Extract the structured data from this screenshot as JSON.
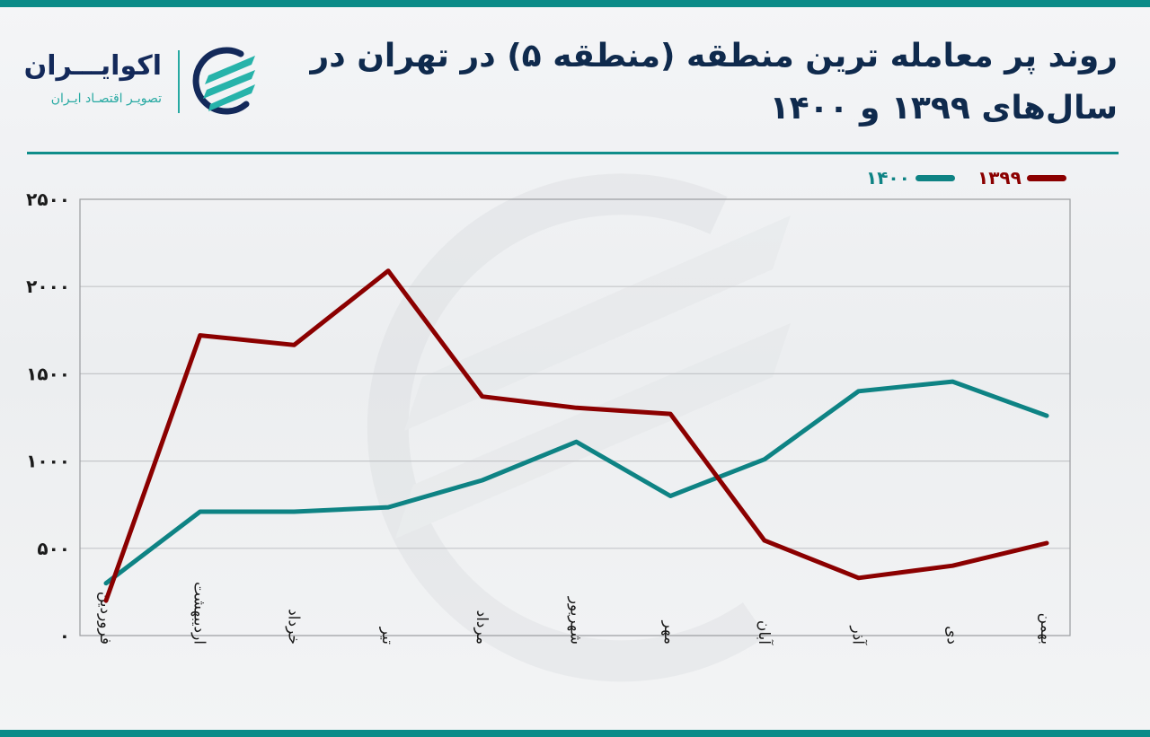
{
  "header": {
    "title_line1": "روند پر معامله ترین منطقه (منطقه ۵) در تهران در",
    "title_line2": "سال‌های ۱۳۹۹ و ۱۴۰۰"
  },
  "logo": {
    "name": "اکوایـــران",
    "tagline": "تصویـر اقتصـاد ایـران",
    "icon": "ecoiran-logo-icon"
  },
  "legend": [
    {
      "label": "۱۳۹۹",
      "color": "#8b0000"
    },
    {
      "label": "۱۴۰۰",
      "color": "#0e8384"
    }
  ],
  "colors": {
    "accent": "#0a8b88",
    "title": "#0f2a4d",
    "series_1399": "#8b0000",
    "series_1400": "#0e8384",
    "grid": "#c4c6c9"
  },
  "chart_data": {
    "type": "line",
    "title": "روند پر معامله ترین منطقه (منطقه ۵) در تهران در سال‌های ۱۳۹۹ و ۱۴۰۰",
    "xlabel": "",
    "ylabel": "",
    "categories": [
      "فروردین",
      "اردیبهشت",
      "خرداد",
      "تیر",
      "مرداد",
      "شهریور",
      "مهر",
      "آبان",
      "آذر",
      "دی",
      "بهمن"
    ],
    "series": [
      {
        "name": "۱۳۹۹",
        "color": "#8b0000",
        "values": [
          200,
          1720,
          1665,
          2090,
          1370,
          1305,
          1270,
          545,
          330,
          400,
          530
        ]
      },
      {
        "name": "۱۴۰۰",
        "color": "#0e8384",
        "values": [
          300,
          710,
          710,
          735,
          890,
          1110,
          800,
          1010,
          1400,
          1455,
          1260
        ]
      }
    ],
    "ylim": [
      0,
      2500
    ],
    "yticks": [
      0,
      500,
      1000,
      1500,
      2000,
      2500
    ],
    "ytick_labels": [
      "۰",
      "۵۰۰",
      "۱۰۰۰",
      "۱۵۰۰",
      "۲۰۰۰",
      "۲۵۰۰"
    ],
    "grid": true,
    "legend_position": "top-right"
  }
}
